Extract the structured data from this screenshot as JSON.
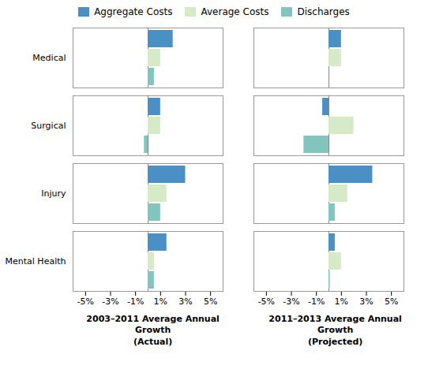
{
  "chart_data": [
    {
      "type": "bar",
      "orientation": "horizontal",
      "xlabel": "2003–2011 Average Annual Growth\n(Actual)",
      "categories": [
        "Medical",
        "Surgical",
        "Injury",
        "Mental Health"
      ],
      "series": [
        {
          "name": "Aggregate Costs",
          "color": "#4A90C4",
          "values": [
            2.0,
            1.0,
            3.0,
            1.5
          ]
        },
        {
          "name": "Average Costs",
          "color": "#D6EAC8",
          "values": [
            1.0,
            1.0,
            1.5,
            0.5
          ]
        },
        {
          "name": "Discharges",
          "color": "#82C5BE",
          "values": [
            0.5,
            -0.3,
            1.0,
            0.5
          ]
        }
      ],
      "xlim": [
        -6,
        6
      ],
      "xticks": [
        {
          "value": -5,
          "label": "-5%"
        },
        {
          "value": -3,
          "label": "-3%"
        },
        {
          "value": -1,
          "label": "-1%"
        },
        {
          "value": 1,
          "label": "1%"
        },
        {
          "value": 3,
          "label": "3%"
        },
        {
          "value": 5,
          "label": "5%"
        }
      ],
      "grid": false,
      "legend": "top"
    },
    {
      "type": "bar",
      "orientation": "horizontal",
      "xlabel": "2011–2013 Average Annual Growth\n(Projected)",
      "categories": [
        "Medical",
        "Surgical",
        "Injury",
        "Mental Health"
      ],
      "series": [
        {
          "name": "Aggregate Costs",
          "color": "#4A90C4",
          "values": [
            1.0,
            -0.5,
            3.5,
            0.5
          ]
        },
        {
          "name": "Average Costs",
          "color": "#D6EAC8",
          "values": [
            1.0,
            2.0,
            1.5,
            1.0
          ]
        },
        {
          "name": "Discharges",
          "color": "#82C5BE",
          "values": [
            0.0,
            -2.0,
            0.5,
            0.1
          ]
        }
      ],
      "xlim": [
        -6,
        6
      ],
      "xticks": [
        {
          "value": -5,
          "label": "-5%"
        },
        {
          "value": -3,
          "label": "-3%"
        },
        {
          "value": -1,
          "label": "-1%"
        },
        {
          "value": 1,
          "label": "1%"
        },
        {
          "value": 3,
          "label": "3%"
        },
        {
          "value": 5,
          "label": "5%"
        }
      ],
      "grid": false,
      "tick_labels": "x"
    }
  ]
}
